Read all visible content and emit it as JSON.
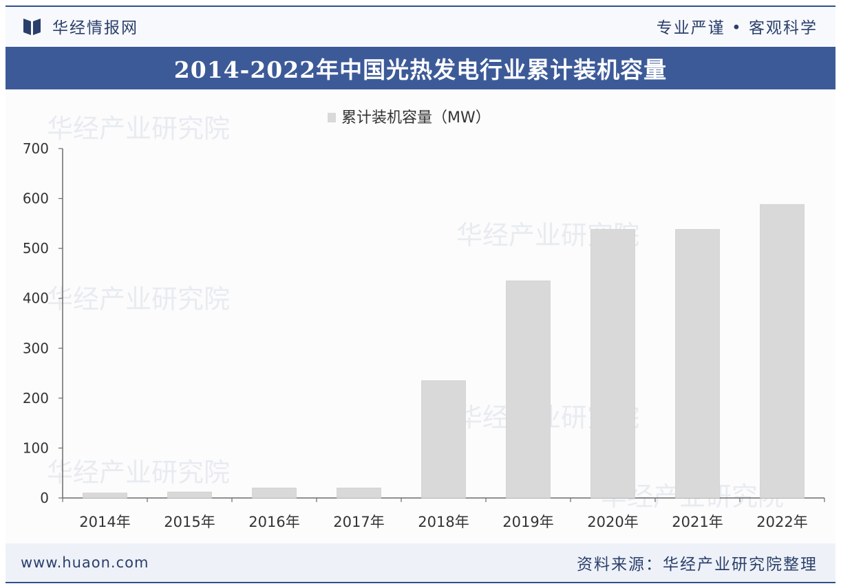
{
  "header": {
    "brand": "华经情报网",
    "slogan": "专业严谨 • 客观科学"
  },
  "title": "2014-2022年中国光热发电行业累计装机容量",
  "footer": {
    "url": "www.huaon.com",
    "source": "资料来源：华经产业研究院整理"
  },
  "watermark": {
    "text": "华经产业研究院"
  },
  "colors": {
    "brand_blue": "#3d5a98",
    "bar": "#d9d9d9",
    "axis": "#555555"
  },
  "chart_data": {
    "type": "bar",
    "categories": [
      "2014年",
      "2015年",
      "2016年",
      "2017年",
      "2018年",
      "2019年",
      "2020年",
      "2021年",
      "2022年"
    ],
    "series": [
      {
        "name": "累计装机容量（MW）",
        "values": [
          10,
          12,
          20,
          20,
          235,
          435,
          538,
          538,
          588
        ]
      }
    ],
    "ylim": [
      0,
      700
    ],
    "yticks": [
      0,
      100,
      200,
      300,
      400,
      500,
      600,
      700
    ],
    "grid": false,
    "legend_position": "top-center"
  }
}
